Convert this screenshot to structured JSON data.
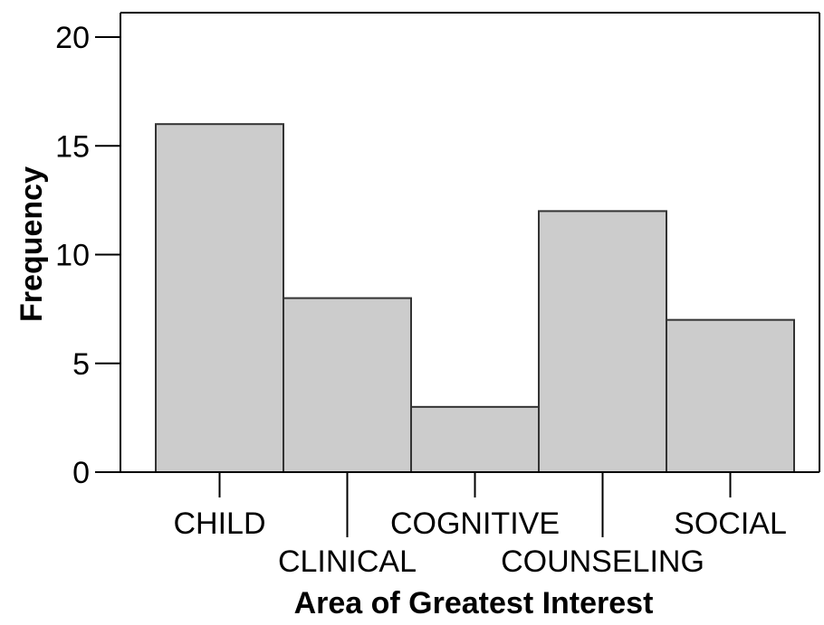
{
  "chart_data": {
    "type": "bar",
    "title": "",
    "xlabel": "Area of Greatest Interest",
    "ylabel": "Frequency",
    "categories": [
      "CHILD",
      "CLINICAL",
      "COGNITIVE",
      "COUNSELING",
      "SOCIAL"
    ],
    "values": [
      16,
      8,
      3,
      12,
      7
    ],
    "ylim": [
      0,
      20
    ],
    "yticks": [
      0,
      5,
      10,
      15,
      20
    ],
    "ytick_labels": [
      "0",
      "5",
      "10",
      "15",
      "20"
    ],
    "grid": false,
    "legend": "none",
    "colors": {
      "bar_fill": "#cccccc",
      "bar_stroke": "#333333",
      "axis": "#000000"
    }
  }
}
